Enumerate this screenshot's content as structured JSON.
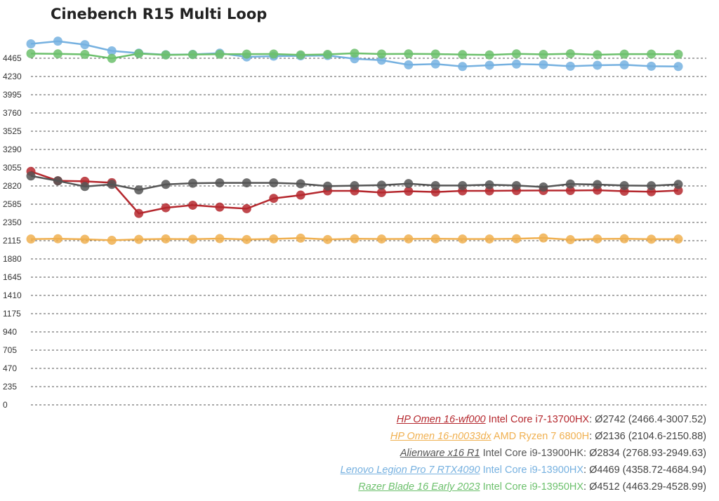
{
  "chart_data": {
    "type": "line",
    "title": "Cinebench R15 Multi Loop",
    "xlabel": "",
    "ylabel": "",
    "ylim": [
      0,
      4700
    ],
    "yticks": [
      0,
      235,
      470,
      705,
      940,
      1175,
      1410,
      1645,
      1880,
      2115,
      2350,
      2585,
      2820,
      3055,
      3290,
      3525,
      3760,
      3995,
      4230,
      4465
    ],
    "grid": true,
    "legend_position": "bottom-right",
    "x": [
      1,
      2,
      3,
      4,
      5,
      6,
      7,
      8,
      9,
      10,
      11,
      12,
      13,
      14,
      15,
      16,
      17,
      18,
      19,
      20,
      21,
      22,
      23,
      24,
      25
    ],
    "series": [
      {
        "name": "HP Omen 16-wf000",
        "cpu": "Intel Core i7-13700HX",
        "stats": "Ø2742 (2466.4-3007.52)",
        "color": "#b5282e",
        "values": [
          3007,
          2887,
          2880,
          2862,
          2466,
          2539,
          2572,
          2548,
          2527,
          2660,
          2702,
          2757,
          2757,
          2735,
          2752,
          2742,
          2757,
          2757,
          2760,
          2761,
          2761,
          2765,
          2752,
          2745,
          2761
        ]
      },
      {
        "name": "HP Omen 16-n0033dx",
        "cpu": "AMD Ryzen 7 6800H",
        "stats": "Ø2136 (2104.6-2150.88)",
        "color": "#f0b050",
        "values": [
          2136,
          2140,
          2133,
          2120,
          2132,
          2138,
          2134,
          2142,
          2130,
          2138,
          2148,
          2130,
          2140,
          2137,
          2138,
          2140,
          2137,
          2137,
          2140,
          2150,
          2128,
          2138,
          2140,
          2134,
          2136
        ]
      },
      {
        "name": "Alienware x16 R1",
        "cpu": "Intel Core i9-13900HK",
        "stats": "Ø2834 (2768.93-2949.63)",
        "color": "#555555",
        "values": [
          2949,
          2885,
          2813,
          2840,
          2769,
          2840,
          2855,
          2860,
          2860,
          2860,
          2848,
          2818,
          2824,
          2830,
          2850,
          2825,
          2825,
          2835,
          2825,
          2806,
          2845,
          2838,
          2825,
          2823,
          2840
        ]
      },
      {
        "name": "Lenovo Legion Pro 7 RTX4090",
        "cpu": "Intel Core i9-13900HX",
        "stats": "Ø4469 (4358.72-4684.94)",
        "color": "#76b1e0",
        "values": [
          4650,
          4685,
          4640,
          4560,
          4530,
          4510,
          4515,
          4530,
          4482,
          4492,
          4496,
          4500,
          4458,
          4440,
          4380,
          4391,
          4359,
          4375,
          4390,
          4383,
          4362,
          4375,
          4380,
          4362,
          4359
        ]
      },
      {
        "name": "Razer Blade 16 Early 2023",
        "cpu": "Intel Core i9-13950HX",
        "stats": "Ø4512 (4463.29-4528.99)",
        "color": "#6cc06c",
        "values": [
          4525,
          4521,
          4515,
          4463,
          4525,
          4508,
          4512,
          4517,
          4518,
          4519,
          4508,
          4515,
          4529,
          4519,
          4522,
          4519,
          4512,
          4508,
          4522,
          4515,
          4523,
          4510,
          4518,
          4518,
          4516
        ]
      }
    ]
  }
}
